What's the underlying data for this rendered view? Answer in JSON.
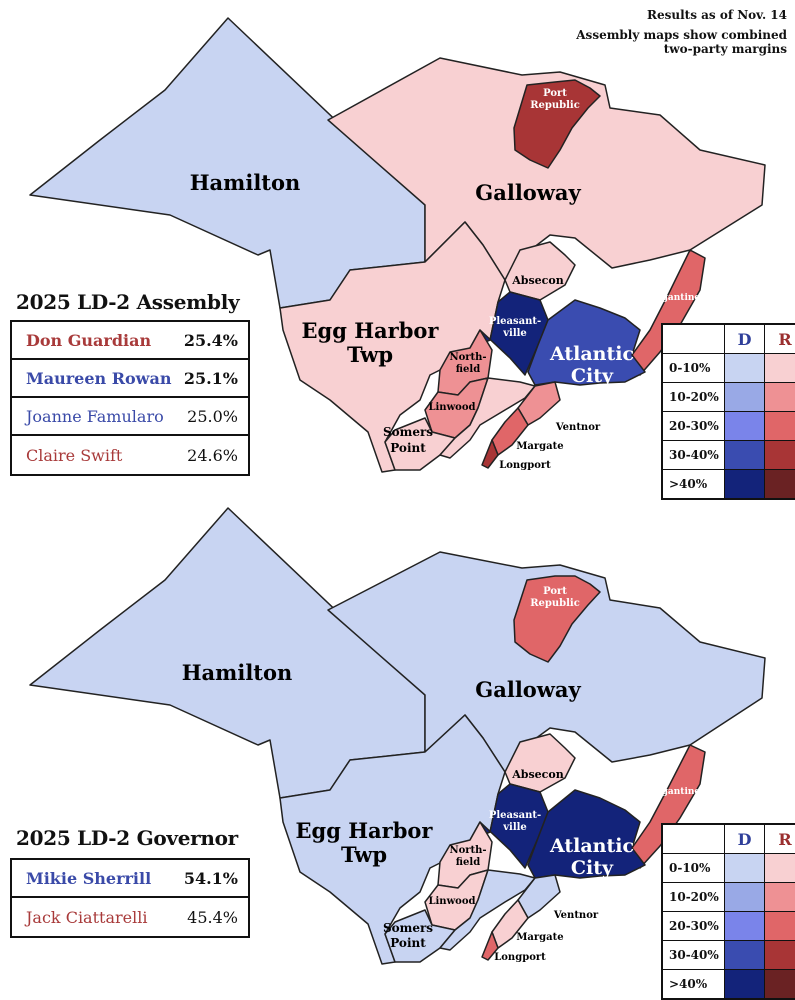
{
  "notes": {
    "results_date": "Results as of Nov. 14",
    "assembly_note_line1": "Assembly maps show combined",
    "assembly_note_line2": "two-party margins"
  },
  "colors": {
    "D": [
      "#c8d4f2",
      "#99a9e6",
      "#7a84ea",
      "#3a4cb0",
      "#13237a"
    ],
    "R": [
      "#f8d0d2",
      "#ee9194",
      "#e06668",
      "#a83536",
      "#6a2223"
    ]
  },
  "legend": {
    "header_d": "D",
    "header_r": "R",
    "ranges": [
      "0-10%",
      "10-20%",
      "20-30%",
      "30-40%",
      ">40%"
    ]
  },
  "municipality_labels": {
    "hamilton": "Hamilton",
    "galloway": "Galloway",
    "port_republic_1": "Port",
    "port_republic_2": "Republic",
    "egg_harbor_1": "Egg Harbor",
    "egg_harbor_2": "Twp",
    "absecon": "Absecon",
    "pleasantville_1": "Pleasant-",
    "pleasantville_2": "ville",
    "brigantine": "Brigantine",
    "atlantic_city_1": "Atlantic",
    "atlantic_city_2": "City",
    "northfield_1": "North-",
    "northfield_2": "field",
    "linwood": "Linwood",
    "somers_point_1": "Somers",
    "somers_point_2": "Point",
    "ventnor": "Ventnor",
    "margate": "Margate",
    "longport": "Longport"
  },
  "assembly": {
    "title": "2025 LD-2 Assembly",
    "candidates": [
      {
        "name": "Don Guardian",
        "pct": "25.4%",
        "party": "R",
        "elected": true
      },
      {
        "name": "Maureen Rowan",
        "pct": "25.1%",
        "party": "D",
        "elected": true
      },
      {
        "name": "Joanne Famularo",
        "pct": "25.0%",
        "party": "D",
        "elected": false
      },
      {
        "name": "Claire Swift",
        "pct": "24.6%",
        "party": "R",
        "elected": false
      }
    ],
    "margins": {
      "hamilton": "D 0-10%",
      "galloway": "R 0-10%",
      "port_republic": "R 30-40%",
      "egg_harbor": "R 0-10%",
      "absecon": "R 0-10%",
      "pleasantville": "D >40%",
      "brigantine": "R 20-30%",
      "atlantic_city": "D 30-40%",
      "northfield": "R 10-20%",
      "linwood": "R 10-20%",
      "somers_point": "R 0-10%",
      "ventnor": "R 10-20%",
      "margate": "R 20-30%",
      "longport": "R 30-40%"
    }
  },
  "governor": {
    "title": "2025 LD-2 Governor",
    "candidates": [
      {
        "name": "Mikie Sherrill",
        "pct": "54.1%",
        "party": "D",
        "elected": true
      },
      {
        "name": "Jack Ciattarelli",
        "pct": "45.4%",
        "party": "R",
        "elected": false
      }
    ],
    "margins": {
      "hamilton": "D 0-10%",
      "galloway": "D 0-10%",
      "port_republic": "R 20-30%",
      "egg_harbor": "D 0-10%",
      "absecon": "R 0-10%",
      "pleasantville": "D >40%",
      "brigantine": "R 20-30%",
      "atlantic_city": "D >40%",
      "northfield": "R 0-10%",
      "linwood": "R 0-10%",
      "somers_point": "D 0-10%",
      "ventnor": "D 0-10%",
      "margate": "R 0-10%",
      "longport": "R 20-30%"
    }
  }
}
